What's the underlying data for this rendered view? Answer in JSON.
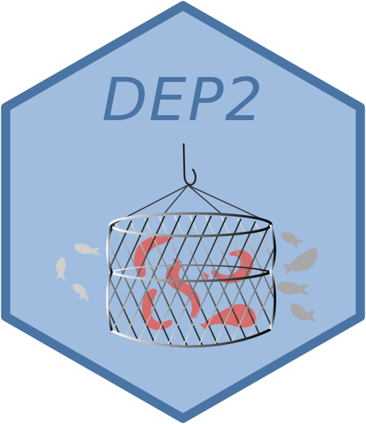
{
  "logo": {
    "title": "DEP2",
    "icon": "fishing-net-cage-icon"
  },
  "colors": {
    "hex_fill": "#a0bde0",
    "hex_border": "#4a74a4",
    "title": "#4a74a4",
    "fish_inside": "#d86b6b",
    "fish_outside_light": "#cfcfcf",
    "fish_outside_dark": "#a8a8a8",
    "net_dark": "#1a1a1a",
    "net_light": "#e8e8e8",
    "hook": "#222222"
  }
}
